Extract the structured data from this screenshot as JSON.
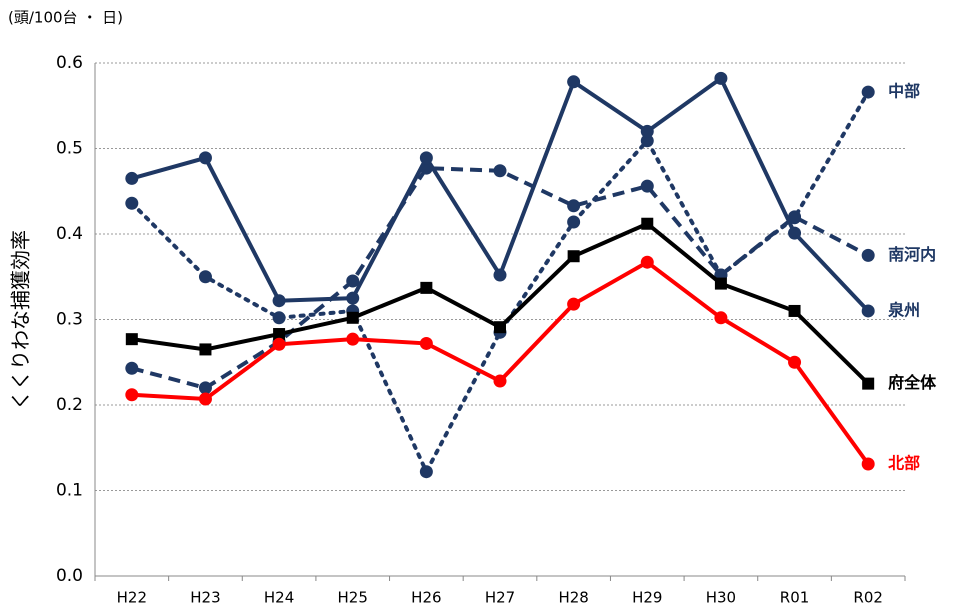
{
  "chart_data": {
    "type": "line",
    "unit_label": "(頭/100台 ・ 日)",
    "y_label": "くくりわな捕獲効率",
    "categories": [
      "H22",
      "H23",
      "H24",
      "H25",
      "H26",
      "H27",
      "H28",
      "H29",
      "H30",
      "R01",
      "R02"
    ],
    "ylim": [
      0,
      0.6
    ],
    "yticks": [
      {
        "value": 0,
        "label": "0.0"
      },
      0.1,
      0.2,
      0.3,
      0.4,
      0.5,
      0.6
    ],
    "grid": true,
    "series": [
      {
        "name": "中部",
        "color": "#1f3864",
        "dash": "dotted",
        "marker": "circle",
        "values": [
          0.436,
          0.35,
          0.302,
          0.31,
          0.122,
          0.285,
          0.414,
          0.509,
          0.352,
          0.419,
          0.566
        ]
      },
      {
        "name": "南河内",
        "color": "#1f3864",
        "dash": "dashed",
        "marker": "circle",
        "values": [
          0.243,
          0.22,
          0.274,
          0.345,
          0.477,
          0.474,
          0.433,
          0.456,
          0.352,
          0.42,
          0.375
        ]
      },
      {
        "name": "泉州",
        "color": "#1f3864",
        "dash": "solid",
        "marker": "circle",
        "values": [
          0.465,
          0.489,
          0.322,
          0.325,
          0.489,
          0.352,
          0.578,
          0.52,
          0.582,
          0.401,
          0.31
        ]
      },
      {
        "name": "府全体",
        "color": "#000000",
        "dash": "solid",
        "marker": "square",
        "values": [
          0.277,
          0.265,
          0.283,
          0.302,
          0.337,
          0.291,
          0.374,
          0.412,
          0.342,
          0.31,
          0.225
        ]
      },
      {
        "name": "北部",
        "color": "#ff0000",
        "dash": "solid",
        "marker": "circle",
        "values": [
          0.212,
          0.207,
          0.271,
          0.277,
          0.272,
          0.228,
          0.318,
          0.367,
          0.302,
          0.25,
          0.131
        ]
      }
    ]
  }
}
